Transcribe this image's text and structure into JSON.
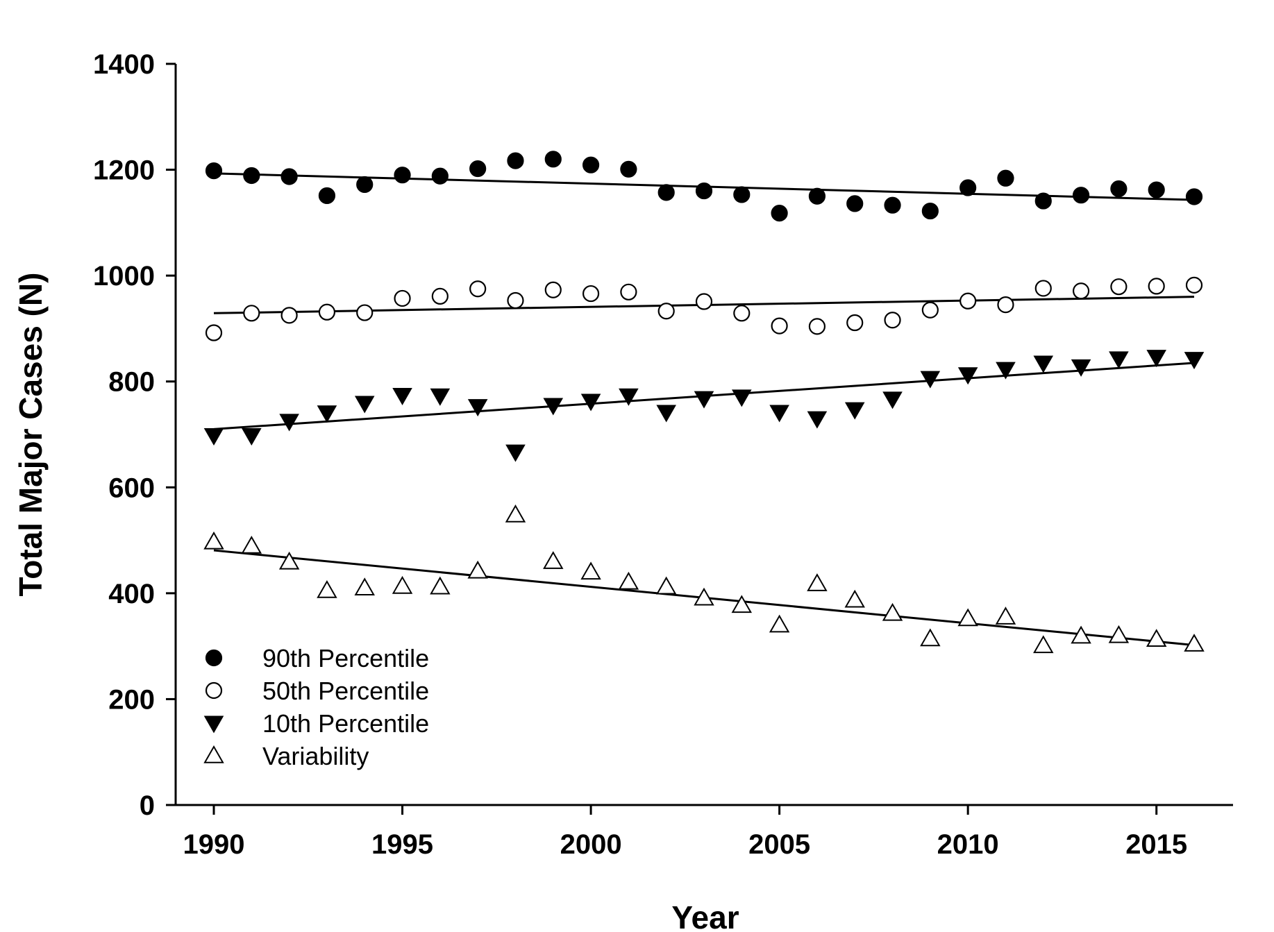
{
  "chart_data": {
    "type": "scatter",
    "title": "",
    "xlabel": "Year",
    "ylabel": "Total Major Cases (N)",
    "xlim": [
      1990,
      2016
    ],
    "ylim": [
      0,
      1400
    ],
    "x_ticks": [
      1990,
      1995,
      2000,
      2005,
      2010,
      2015
    ],
    "y_ticks": [
      0,
      200,
      400,
      600,
      800,
      1000,
      1200,
      1400
    ],
    "grid": false,
    "legend_position": "bottom-left",
    "x": [
      1990,
      1991,
      1992,
      1993,
      1994,
      1995,
      1996,
      1997,
      1998,
      1999,
      2000,
      2001,
      2002,
      2003,
      2004,
      2005,
      2006,
      2007,
      2008,
      2009,
      2010,
      2011,
      2012,
      2013,
      2014,
      2015,
      2016
    ],
    "series": [
      {
        "name": "90th Percentile",
        "marker": "filled-circle",
        "values": [
          1198,
          1189,
          1187,
          1151,
          1172,
          1190,
          1188,
          1202,
          1217,
          1220,
          1209,
          1201,
          1157,
          1160,
          1153,
          1118,
          1150,
          1136,
          1133,
          1122,
          1166,
          1184,
          1141,
          1152,
          1164,
          1162,
          1149
        ],
        "trend": [
          1193,
          1143
        ]
      },
      {
        "name": "50th Percentile",
        "marker": "open-circle",
        "values": [
          892,
          929,
          925,
          931,
          930,
          957,
          961,
          975,
          953,
          973,
          966,
          969,
          933,
          951,
          929,
          905,
          904,
          911,
          916,
          935,
          952,
          945,
          976,
          971,
          979,
          980,
          982
        ],
        "trend": [
          929,
          960
        ]
      },
      {
        "name": "10th Percentile",
        "marker": "filled-triangle-down",
        "values": [
          698,
          698,
          725,
          741,
          759,
          774,
          773,
          753,
          667,
          755,
          763,
          773,
          742,
          768,
          771,
          742,
          730,
          747,
          767,
          806,
          813,
          823,
          835,
          828,
          843,
          846,
          842
        ],
        "trend": [
          710,
          835
        ]
      },
      {
        "name": "Variability",
        "marker": "open-triangle-up",
        "values": [
          497,
          489,
          459,
          405,
          410,
          413,
          412,
          442,
          548,
          460,
          440,
          421,
          412,
          391,
          377,
          340,
          418,
          387,
          362,
          314,
          352,
          355,
          301,
          319,
          320,
          313,
          304
        ],
        "trend": [
          481,
          302
        ]
      }
    ]
  }
}
